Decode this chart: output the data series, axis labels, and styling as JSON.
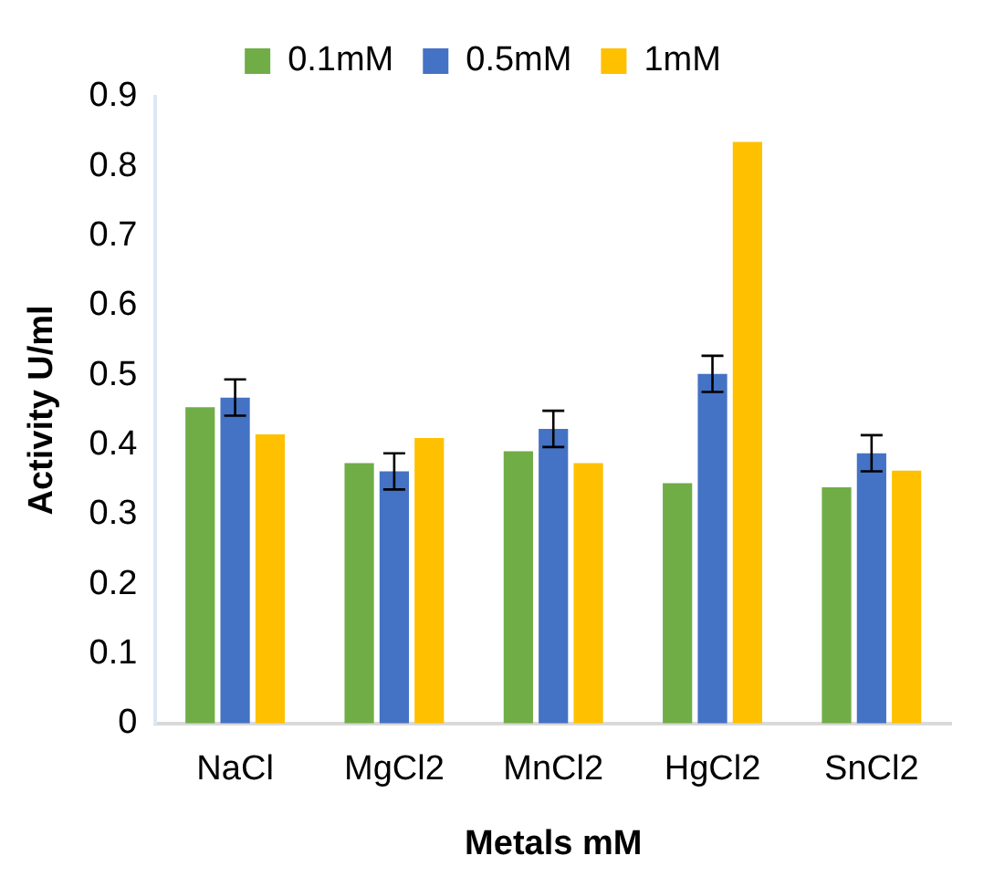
{
  "chart_data": {
    "type": "bar",
    "xlabel": "Metals mM",
    "ylabel": "Activity U/ml",
    "categories": [
      "NaCl",
      "MgCl2",
      "MnCl2",
      "HgCl2",
      "SnCl2"
    ],
    "series": [
      {
        "name": "0.1mM",
        "color": "#70ad47",
        "values": [
          0.454,
          0.374,
          0.391,
          0.345,
          0.339
        ]
      },
      {
        "name": "0.5mM",
        "color": "#4472c4",
        "values": [
          0.468,
          0.362,
          0.423,
          0.502,
          0.388
        ],
        "errors": [
          0.026,
          0.026,
          0.026,
          0.026,
          0.026
        ]
      },
      {
        "name": "1mM",
        "color": "#ffc000",
        "values": [
          0.415,
          0.41,
          0.374,
          0.835,
          0.363
        ]
      }
    ],
    "ylim": [
      0,
      0.9
    ],
    "yticks": [
      0,
      0.1,
      0.2,
      0.3,
      0.4,
      0.5,
      0.6,
      0.7,
      0.8,
      0.9
    ],
    "grid": false,
    "legend": "top"
  }
}
